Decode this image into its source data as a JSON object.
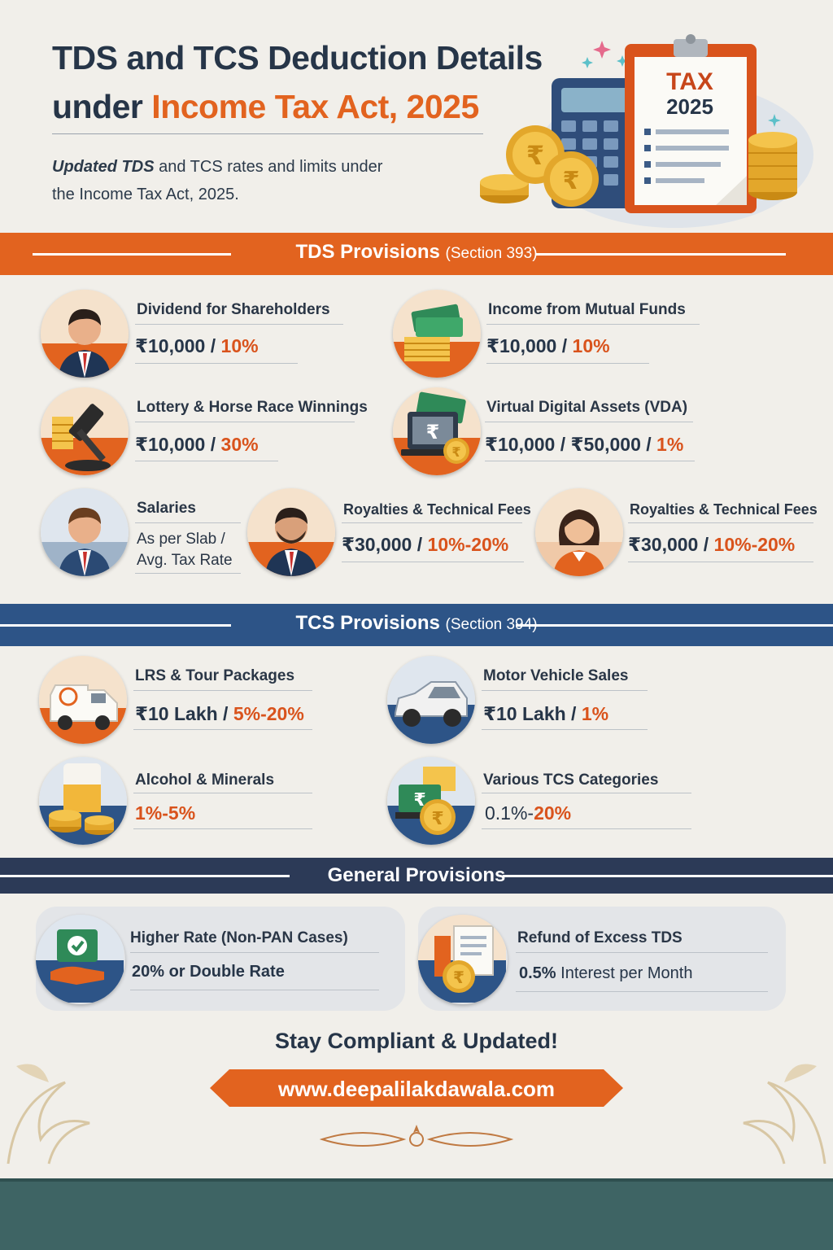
{
  "header": {
    "title_line1": "TDS and TCS Deduction Details",
    "title_line2_prefix": "under ",
    "title_line2_accent": "Income Tax Act, 2025",
    "subtitle_em": "Updated TDS",
    "subtitle_rest1": " and TCS rates and limits under",
    "subtitle_line2": "the Income Tax Act, 2025.",
    "clipboard_word": "TAX",
    "clipboard_year": "2025"
  },
  "colors": {
    "orange": "#e2631f",
    "navy": "#263548",
    "blue_band": "#2d5487",
    "slate_band": "#2c3a57"
  },
  "tds": {
    "heading": "TDS Provisions",
    "section": "(Section 393)",
    "items": [
      {
        "title": "Dividend for Shareholders",
        "limit": "₹10,000 / ",
        "rate": "10%",
        "icon": "shareholder-man-icon"
      },
      {
        "title": "Income from Mutual Funds",
        "limit": "₹10,000 / ",
        "rate": "10%",
        "icon": "money-stack-icon"
      },
      {
        "title": "Lottery & Horse Race Winnings",
        "limit": "₹10,000 / ",
        "rate": "30%",
        "icon": "gavel-coins-icon"
      },
      {
        "title": "Virtual Digital Assets (VDA)",
        "limit": "₹10,000 / ₹50,000 / ",
        "rate": "1%",
        "icon": "laptop-rupee-icon"
      },
      {
        "title": "Salaries",
        "line1": "As per Slab /",
        "line2": "Avg. Tax Rate",
        "icon": "employee-man-icon"
      },
      {
        "title": "Royalties & Technical Fees",
        "limit": "₹30,000 / ",
        "rate": "10%-20%",
        "icon": "bearded-man-icon"
      },
      {
        "title": "Royalties & Technical Fees",
        "limit": "₹30,000 / ",
        "rate": "10%-20%",
        "icon": "woman-icon"
      }
    ]
  },
  "tcs": {
    "heading": "TCS Provisions",
    "section": "(Section 394)",
    "items": [
      {
        "title": "LRS & Tour Packages",
        "limit": "₹10 Lakh / ",
        "rate": "5%-20%",
        "icon": "van-icon"
      },
      {
        "title": "Motor Vehicle Sales",
        "limit": "₹10 Lakh / ",
        "rate": "1%",
        "icon": "car-icon"
      },
      {
        "title": "Alcohol & Minerals",
        "limit": "",
        "rate": "1%-5%",
        "icon": "alcohol-coins-icon"
      },
      {
        "title": "Various TCS Categories",
        "limit": "0.1%-",
        "rate": "20%",
        "icon": "tcs-rupee-icon"
      }
    ]
  },
  "general": {
    "heading": "General Provisions",
    "items": [
      {
        "title": "Higher Rate (Non-PAN Cases)",
        "value": "20% or Double Rate",
        "icon": "pan-check-icon"
      },
      {
        "title": "Refund of Excess TDS",
        "value_bold": "0.5%",
        "value_rest": " Interest per Month",
        "icon": "refund-document-icon"
      }
    ]
  },
  "footer": {
    "closing": "Stay Compliant & Updated!",
    "website": "www.deepalilakdawala.com"
  }
}
